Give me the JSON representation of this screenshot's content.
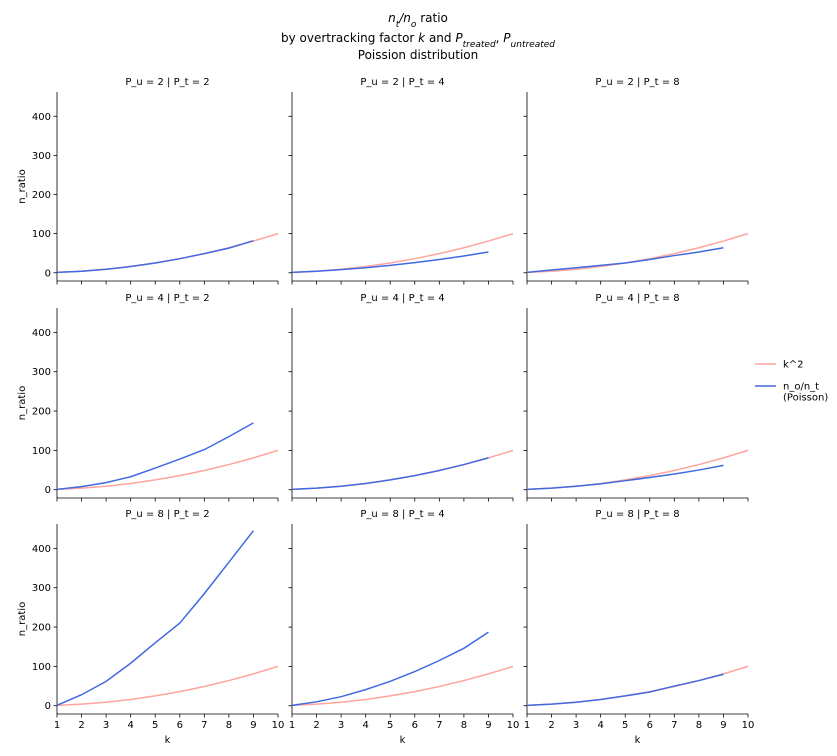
{
  "title": [
    [
      {
        "text": "n",
        "italic": true
      },
      {
        "text": "t",
        "italic": true,
        "sub": true
      },
      {
        "text": "/",
        "italic": true
      },
      {
        "text": "n",
        "italic": true
      },
      {
        "text": "o",
        "italic": true,
        "sub": true
      },
      {
        "text": " ratio"
      }
    ],
    [
      {
        "text": "by overtracking factor "
      },
      {
        "text": "k",
        "italic": true
      },
      {
        "text": " and "
      },
      {
        "text": "P",
        "italic": true
      },
      {
        "text": "treated",
        "italic": true,
        "sub": true
      },
      {
        "text": ", "
      },
      {
        "text": "P",
        "italic": true
      },
      {
        "text": "untreated",
        "italic": true,
        "sub": true
      }
    ],
    [
      {
        "text": "Poission distribution"
      }
    ]
  ],
  "chart_data": [
    {
      "type": "line",
      "title": "P_u = 2 | P_t = 2",
      "ylabel": "n_ratio",
      "x": [
        1,
        2,
        3,
        4,
        5,
        6,
        7,
        8,
        9,
        10
      ],
      "xlim": [
        1,
        10
      ],
      "ylim": [
        -21,
        462
      ],
      "xticks": [
        1,
        2,
        3,
        4,
        5,
        6,
        7,
        8,
        9,
        10
      ],
      "yticks": [
        0,
        100,
        200,
        300,
        400
      ],
      "series": [
        {
          "name": "k^2",
          "color": "#ffa59e",
          "values": [
            1,
            4,
            9,
            16,
            25,
            36,
            49,
            64,
            81,
            100
          ]
        },
        {
          "name": "n_o/n_t\n(Poisson)",
          "color": "#4169e1",
          "values": [
            1,
            4,
            9,
            16,
            25,
            36,
            49,
            63,
            82,
            null
          ]
        }
      ]
    },
    {
      "type": "line",
      "title": "P_u = 2 | P_t = 4",
      "x": [
        1,
        2,
        3,
        4,
        5,
        6,
        7,
        8,
        9,
        10
      ],
      "xlim": [
        1,
        10
      ],
      "ylim": [
        -21,
        462
      ],
      "xticks": [
        1,
        2,
        3,
        4,
        5,
        6,
        7,
        8,
        9,
        10
      ],
      "yticks": [
        0,
        100,
        200,
        300,
        400
      ],
      "series": [
        {
          "name": "k^2",
          "color": "#ffa59e",
          "values": [
            1,
            4,
            9,
            16,
            25,
            36,
            49,
            64,
            81,
            100
          ]
        },
        {
          "name": "n_o/n_t\n(Poisson)",
          "color": "#4169e1",
          "values": [
            1,
            4,
            8,
            13,
            19,
            26,
            34,
            43,
            53,
            null
          ]
        }
      ]
    },
    {
      "type": "line",
      "title": "P_u = 2 | P_t = 8",
      "x": [
        1,
        2,
        3,
        4,
        5,
        6,
        7,
        8,
        9,
        10
      ],
      "xlim": [
        1,
        10
      ],
      "ylim": [
        -21,
        462
      ],
      "xticks": [
        1,
        2,
        3,
        4,
        5,
        6,
        7,
        8,
        9,
        10
      ],
      "yticks": [
        0,
        100,
        200,
        300,
        400
      ],
      "series": [
        {
          "name": "k^2",
          "color": "#ffa59e",
          "values": [
            1,
            4,
            9,
            16,
            25,
            36,
            49,
            64,
            81,
            100
          ]
        },
        {
          "name": "n_o/n_t\n(Poisson)",
          "color": "#4169e1",
          "values": [
            1,
            7,
            13,
            19,
            25,
            34,
            44,
            53,
            64,
            null
          ]
        }
      ]
    },
    {
      "type": "line",
      "title": "P_u = 4 | P_t = 2",
      "ylabel": "n_ratio",
      "x": [
        1,
        2,
        3,
        4,
        5,
        6,
        7,
        8,
        9,
        10
      ],
      "xlim": [
        1,
        10
      ],
      "ylim": [
        -21,
        462
      ],
      "xticks": [
        1,
        2,
        3,
        4,
        5,
        6,
        7,
        8,
        9,
        10
      ],
      "yticks": [
        0,
        100,
        200,
        300,
        400
      ],
      "series": [
        {
          "name": "k^2",
          "color": "#ffa59e",
          "values": [
            1,
            4,
            9,
            16,
            25,
            36,
            49,
            64,
            81,
            100
          ]
        },
        {
          "name": "n_o/n_t\n(Poisson)",
          "color": "#4169e1",
          "values": [
            1,
            8,
            18,
            33,
            55,
            78,
            102,
            135,
            170,
            null
          ]
        }
      ]
    },
    {
      "type": "line",
      "title": "P_u = 4 | P_t = 4",
      "x": [
        1,
        2,
        3,
        4,
        5,
        6,
        7,
        8,
        9,
        10
      ],
      "xlim": [
        1,
        10
      ],
      "ylim": [
        -21,
        462
      ],
      "xticks": [
        1,
        2,
        3,
        4,
        5,
        6,
        7,
        8,
        9,
        10
      ],
      "yticks": [
        0,
        100,
        200,
        300,
        400
      ],
      "series": [
        {
          "name": "k^2",
          "color": "#ffa59e",
          "values": [
            1,
            4,
            9,
            16,
            25,
            36,
            49,
            64,
            81,
            100
          ]
        },
        {
          "name": "n_o/n_t\n(Poisson)",
          "color": "#4169e1",
          "values": [
            1,
            4,
            9,
            16,
            25,
            36,
            49,
            64,
            81,
            null
          ]
        }
      ]
    },
    {
      "type": "line",
      "title": "P_u = 4 | P_t = 8",
      "x": [
        1,
        2,
        3,
        4,
        5,
        6,
        7,
        8,
        9,
        10
      ],
      "xlim": [
        1,
        10
      ],
      "ylim": [
        -21,
        462
      ],
      "xticks": [
        1,
        2,
        3,
        4,
        5,
        6,
        7,
        8,
        9,
        10
      ],
      "yticks": [
        0,
        100,
        200,
        300,
        400
      ],
      "series": [
        {
          "name": "k^2",
          "color": "#ffa59e",
          "values": [
            1,
            4,
            9,
            16,
            25,
            36,
            49,
            64,
            81,
            100
          ]
        },
        {
          "name": "n_o/n_t\n(Poisson)",
          "color": "#4169e1",
          "values": [
            1,
            4,
            9,
            15,
            23,
            31,
            40,
            50,
            62,
            null
          ]
        }
      ]
    },
    {
      "type": "line",
      "title": "P_u = 8 | P_t = 2",
      "ylabel": "n_ratio",
      "xlabel": "k",
      "x": [
        1,
        2,
        3,
        4,
        5,
        6,
        7,
        8,
        9,
        10
      ],
      "xlim": [
        1,
        10
      ],
      "ylim": [
        -21,
        462
      ],
      "xticks": [
        1,
        2,
        3,
        4,
        5,
        6,
        7,
        8,
        9,
        10
      ],
      "yticks": [
        0,
        100,
        200,
        300,
        400
      ],
      "series": [
        {
          "name": "k^2",
          "color": "#ffa59e",
          "values": [
            1,
            4,
            9,
            16,
            25,
            36,
            49,
            64,
            81,
            100
          ]
        },
        {
          "name": "n_o/n_t\n(Poisson)",
          "color": "#4169e1",
          "values": [
            1,
            28,
            62,
            108,
            160,
            210,
            285,
            365,
            445,
            null
          ]
        }
      ]
    },
    {
      "type": "line",
      "title": "P_u = 8 | P_t = 4",
      "xlabel": "k",
      "x": [
        1,
        2,
        3,
        4,
        5,
        6,
        7,
        8,
        9,
        10
      ],
      "xlim": [
        1,
        10
      ],
      "ylim": [
        -21,
        462
      ],
      "xticks": [
        1,
        2,
        3,
        4,
        5,
        6,
        7,
        8,
        9,
        10
      ],
      "yticks": [
        0,
        100,
        200,
        300,
        400
      ],
      "series": [
        {
          "name": "k^2",
          "color": "#ffa59e",
          "values": [
            1,
            4,
            9,
            16,
            25,
            36,
            49,
            64,
            81,
            100
          ]
        },
        {
          "name": "n_o/n_t\n(Poisson)",
          "color": "#4169e1",
          "values": [
            1,
            10,
            23,
            41,
            62,
            87,
            115,
            146,
            187,
            null
          ]
        }
      ]
    },
    {
      "type": "line",
      "title": "P_u = 8 | P_t = 8",
      "xlabel": "k",
      "x": [
        1,
        2,
        3,
        4,
        5,
        6,
        7,
        8,
        9,
        10
      ],
      "xlim": [
        1,
        10
      ],
      "ylim": [
        -21,
        462
      ],
      "xticks": [
        1,
        2,
        3,
        4,
        5,
        6,
        7,
        8,
        9,
        10
      ],
      "yticks": [
        0,
        100,
        200,
        300,
        400
      ],
      "series": [
        {
          "name": "k^2",
          "color": "#ffa59e",
          "values": [
            1,
            4,
            9,
            16,
            25,
            36,
            49,
            64,
            81,
            100
          ]
        },
        {
          "name": "n_o/n_t\n(Poisson)",
          "color": "#4169e1",
          "values": [
            1,
            4,
            9,
            16,
            25,
            35,
            50,
            64,
            80,
            null
          ]
        }
      ]
    }
  ]
}
